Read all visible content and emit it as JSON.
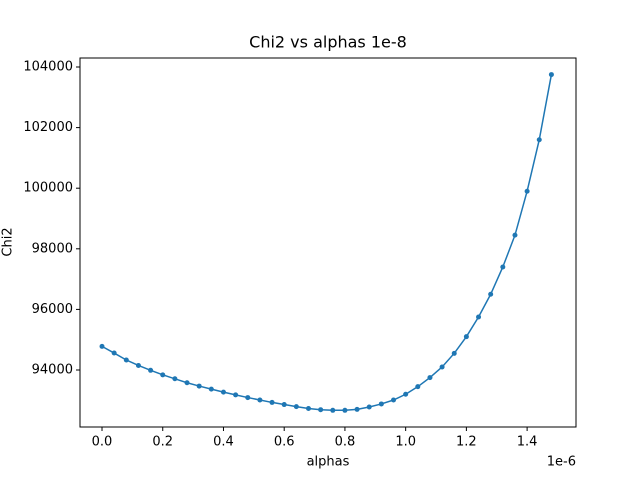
{
  "chart_data": {
    "type": "line",
    "title": "Chi2 vs alphas 1e-8",
    "x_label": "alphas",
    "y_label": "Chi2",
    "x_offset_text": "1e-6",
    "x": [
      0,
      4e-08,
      8e-08,
      1.2e-07,
      1.6e-07,
      2e-07,
      2.4e-07,
      2.8e-07,
      3.2e-07,
      3.6e-07,
      4e-07,
      4.4e-07,
      4.8e-07,
      5.2e-07,
      5.6e-07,
      6e-07,
      6.4e-07,
      6.8e-07,
      7.2e-07,
      7.6e-07,
      8e-07,
      8.4e-07,
      8.8e-07,
      9.2e-07,
      9.6e-07,
      1e-06,
      1.04e-06,
      1.08e-06,
      1.12e-06,
      1.16e-06,
      1.2e-06,
      1.24e-06,
      1.28e-06,
      1.32e-06,
      1.36e-06,
      1.4e-06,
      1.44e-06,
      1.48e-06
    ],
    "series": [
      {
        "color": "#1f77b4",
        "values": [
          94780,
          94560,
          94330,
          94150,
          93990,
          93840,
          93710,
          93580,
          93470,
          93370,
          93270,
          93180,
          93090,
          93010,
          92930,
          92860,
          92790,
          92730,
          92690,
          92670,
          92670,
          92700,
          92780,
          92880,
          93010,
          93200,
          93450,
          93750,
          94100,
          94550,
          95100,
          95750,
          96500,
          97400,
          98450,
          99900,
          101600,
          103750
        ]
      }
    ],
    "xlim": [
      -7.25e-08,
      1.561e-06
    ],
    "xticks": [
      {
        "value": 0,
        "label": "0.0"
      },
      {
        "value": 2e-07,
        "label": "0.2"
      },
      {
        "value": 4e-07,
        "label": "0.4"
      },
      {
        "value": 6e-07,
        "label": "0.6"
      },
      {
        "value": 8e-07,
        "label": "0.8"
      },
      {
        "value": 1e-06,
        "label": "1.0"
      },
      {
        "value": 1.2e-06,
        "label": "1.2"
      },
      {
        "value": 1.4e-06,
        "label": "1.4"
      }
    ],
    "ylim": [
      92119,
      104297
    ],
    "yticks": [
      94000,
      96000,
      98000,
      100000,
      102000,
      104000
    ],
    "grid": false
  }
}
